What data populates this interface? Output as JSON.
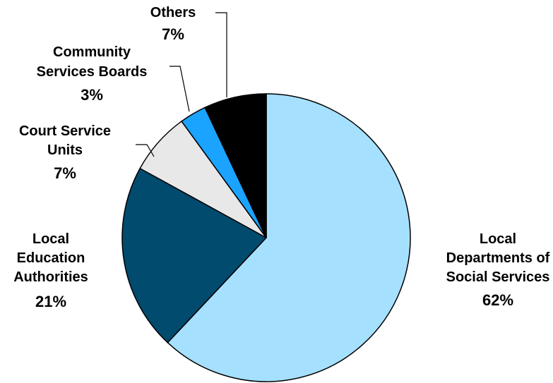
{
  "chart_data": {
    "type": "pie",
    "title": "",
    "start_angle_deg": 0,
    "direction": "clockwise",
    "slices": [
      {
        "name_lines": [
          "Local",
          "Departments of",
          "Social Services"
        ],
        "value": 62,
        "label": "62%",
        "color": "#A6E0FF"
      },
      {
        "name_lines": [
          "Local",
          "Education",
          "Authorities"
        ],
        "value": 21,
        "label": "21%",
        "color": "#004B6E"
      },
      {
        "name_lines": [
          "Court Service",
          "Units"
        ],
        "value": 7,
        "label": "7%",
        "color": "#E8E8E8"
      },
      {
        "name_lines": [
          "Community",
          "Services Boards"
        ],
        "value": 3,
        "label": "3%",
        "color": "#1AA3FF"
      },
      {
        "name_lines": [
          "Others"
        ],
        "value": 7,
        "label": "7%",
        "color": "#000000"
      }
    ]
  }
}
